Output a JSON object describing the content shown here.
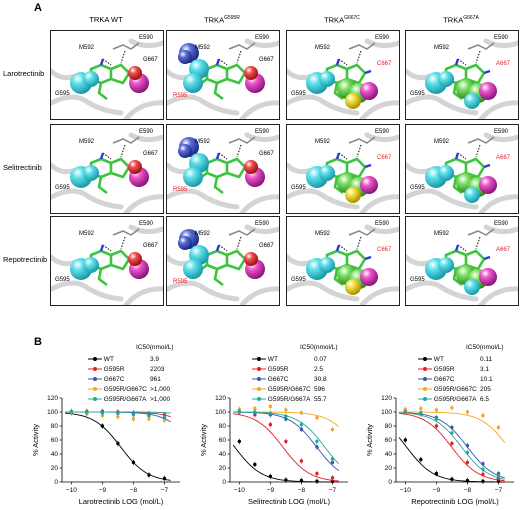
{
  "panel_a": {
    "letter": "A",
    "columns": [
      {
        "label": "TRKA WT",
        "sup": ""
      },
      {
        "label": "TRKA",
        "sup": "G595R"
      },
      {
        "label": "TRKA",
        "sup": "G667C"
      },
      {
        "label": "TRKA",
        "sup": "G667A"
      }
    ],
    "rows": [
      "Larotrectinib",
      "Selitrectinib",
      "Repotrectinib"
    ],
    "residues": {
      "m592": "M592",
      "e590": "E590",
      "g667": "G667",
      "g595": "G595",
      "r595": "R595",
      "c667": "C667",
      "a667": "A667"
    }
  },
  "panel_b": {
    "letter": "B",
    "ylabel": "% Activity",
    "ic50_label": "IC50(nmol/L)",
    "colors": [
      "#000000",
      "#e0202a",
      "#3a56b0",
      "#f5a623",
      "#22a89a"
    ],
    "chart_data": [
      {
        "type": "scatter",
        "xlabel": "Larotrectinib LOG (mol/L)",
        "ylabel": "% Activity",
        "xlim": [
          -10.3,
          -6.5
        ],
        "ylim": [
          0,
          120
        ],
        "xticks": [
          -10,
          -9,
          -8,
          -7
        ],
        "yticks": [
          0,
          20,
          40,
          60,
          80,
          100,
          120
        ],
        "legend": [
          {
            "name": "WT",
            "ic50": "3.9"
          },
          {
            "name": "G595R",
            "ic50": "2203"
          },
          {
            "name": "G667C",
            "ic50": "961"
          },
          {
            "name": "G595R/G667C",
            "ic50": ">1,000"
          },
          {
            "name": "G595R/G667A",
            "ic50": ">1,000"
          }
        ],
        "series": [
          {
            "name": "WT",
            "log_ic50": -8.41,
            "hill": 1.0,
            "x": [
              -10,
              -9.5,
              -9,
              -8.5,
              -8,
              -7.5,
              -7
            ],
            "y": [
              100,
              99,
              80,
              55,
              28,
              10,
              5
            ]
          },
          {
            "name": "G595R",
            "log_ic50": -5.66,
            "hill": 1.0,
            "x": [
              -10,
              -9.5,
              -9,
              -8.5,
              -8,
              -7.5,
              -7
            ],
            "y": [
              100,
              101,
              101,
              100,
              99,
              98,
              96
            ]
          },
          {
            "name": "G667C",
            "log_ic50": -6.02,
            "hill": 1.0,
            "x": [
              -10,
              -9.5,
              -9,
              -8.5,
              -8,
              -7.5,
              -7
            ],
            "y": [
              99,
              100,
              100,
              98,
              97,
              95,
              91
            ]
          },
          {
            "name": "G595R/G667C",
            "log_ic50": -5.0,
            "hill": 1.0,
            "x": [
              -10,
              -9.5,
              -9,
              -8.5,
              -8,
              -7.5,
              -7
            ],
            "y": [
              100,
              97,
              95,
              93,
              90,
              90,
              88
            ]
          },
          {
            "name": "G595R/G667A",
            "log_ic50": -5.0,
            "hill": 1.0,
            "x": [
              -10,
              -9.5,
              -9,
              -8.5,
              -8,
              -7.5,
              -7
            ],
            "y": [
              101,
              100,
              99,
              98,
              96,
              95,
              93
            ]
          }
        ]
      },
      {
        "type": "scatter",
        "xlabel": "Selitrectinib LOG (mol/L)",
        "ylabel": "% Activity",
        "xlim": [
          -10.3,
          -6.5
        ],
        "ylim": [
          0,
          120
        ],
        "xticks": [
          -10,
          -9,
          -8,
          -7
        ],
        "yticks": [
          0,
          20,
          40,
          60,
          80,
          100,
          120
        ],
        "legend": [
          {
            "name": "WT",
            "ic50": "0.07"
          },
          {
            "name": "G595R",
            "ic50": "2.5"
          },
          {
            "name": "G667C",
            "ic50": "30.8"
          },
          {
            "name": "G595R/G667C",
            "ic50": "596"
          },
          {
            "name": "G595R/G667A",
            "ic50": "55.7"
          }
        ],
        "series": [
          {
            "name": "WT",
            "log_ic50": -10.15,
            "hill": 1.0,
            "x": [
              -10,
              -9.5,
              -9,
              -8.5,
              -8,
              -7.5,
              -7
            ],
            "y": [
              58,
              25,
              8,
              3,
              2,
              1,
              1
            ]
          },
          {
            "name": "G595R",
            "log_ic50": -8.6,
            "hill": 1.0,
            "x": [
              -10,
              -9.5,
              -9,
              -8.5,
              -8,
              -7.5,
              -7
            ],
            "y": [
              100,
              96,
              82,
              58,
              30,
              12,
              6
            ]
          },
          {
            "name": "G667C",
            "log_ic50": -7.51,
            "hill": 1.0,
            "x": [
              -10,
              -9.5,
              -9,
              -8.5,
              -8,
              -7.5,
              -7
            ],
            "y": [
              100,
              99,
              96,
              90,
              75,
              50,
              28
            ]
          },
          {
            "name": "G595R/G667C",
            "log_ic50": -6.22,
            "hill": 1.0,
            "x": [
              -10,
              -9.5,
              -9,
              -8.5,
              -8,
              -7.5,
              -7
            ],
            "y": [
              104,
              105,
              108,
              103,
              99,
              92,
              75
            ]
          },
          {
            "name": "G595R/G667A",
            "log_ic50": -7.25,
            "hill": 1.0,
            "x": [
              -10,
              -9.5,
              -9,
              -8.5,
              -8,
              -7.5,
              -7
            ],
            "y": [
              101,
              100,
              98,
              94,
              82,
              58,
              33
            ]
          }
        ]
      },
      {
        "type": "scatter",
        "xlabel": "Repotrectinib LOG (mol/L)",
        "ylabel": "% Activity",
        "xlim": [
          -10.3,
          -6.5
        ],
        "ylim": [
          0,
          120
        ],
        "xticks": [
          -10,
          -9,
          -8,
          -7
        ],
        "yticks": [
          0,
          20,
          40,
          60,
          80,
          100,
          120
        ],
        "legend": [
          {
            "name": "WT",
            "ic50": "0.11"
          },
          {
            "name": "G595R",
            "ic50": "3.1"
          },
          {
            "name": "G667C",
            "ic50": "10.1"
          },
          {
            "name": "G595R/G667C",
            "ic50": "205"
          },
          {
            "name": "G595R/G667A",
            "ic50": "6.5"
          }
        ],
        "series": [
          {
            "name": "WT",
            "log_ic50": -9.96,
            "hill": 1.0,
            "x": [
              -10,
              -9.5,
              -9,
              -8.5,
              -8,
              -7.5,
              -7
            ],
            "y": [
              60,
              32,
              12,
              4,
              2,
              1,
              1
            ]
          },
          {
            "name": "G595R",
            "log_ic50": -8.51,
            "hill": 1.0,
            "x": [
              -10,
              -9.5,
              -9,
              -8.5,
              -8,
              -7.5,
              -7
            ],
            "y": [
              102,
              97,
              80,
              55,
              28,
              11,
              5
            ]
          },
          {
            "name": "G667C",
            "log_ic50": -8.0,
            "hill": 1.0,
            "x": [
              -10,
              -9.5,
              -9,
              -8.5,
              -8,
              -7.5,
              -7
            ],
            "y": [
              101,
              99,
              92,
              78,
              52,
              26,
              12
            ]
          },
          {
            "name": "G595R/G667C",
            "log_ic50": -6.69,
            "hill": 1.0,
            "x": [
              -10,
              -9.5,
              -9,
              -8.5,
              -8,
              -7.5,
              -7
            ],
            "y": [
              104,
              105,
              103,
              106,
              100,
              95,
              78
            ]
          },
          {
            "name": "G595R/G667A",
            "log_ic50": -8.19,
            "hill": 1.0,
            "x": [
              -10,
              -9.5,
              -9,
              -8.5,
              -8,
              -7.5,
              -7
            ],
            "y": [
              100,
              98,
              90,
              70,
              42,
              18,
              9
            ]
          }
        ]
      }
    ]
  }
}
